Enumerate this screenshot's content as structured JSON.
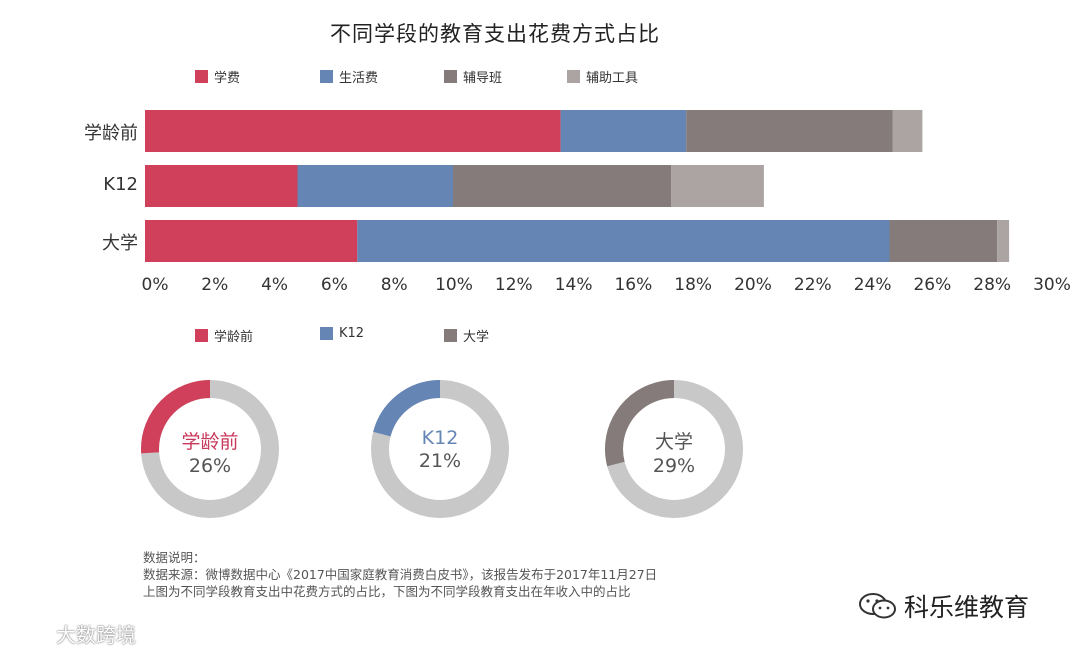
{
  "title": "不同学段的教育支出花费方式占比",
  "legend_top": [
    {
      "label": "学费",
      "color": "#d0405a"
    },
    {
      "label": "生活费",
      "color": "#6585b5"
    },
    {
      "label": "辅导班",
      "color": "#857b7a"
    },
    {
      "label": "辅助工具",
      "color": "#aba4a3"
    }
  ],
  "legend_bottom": [
    {
      "label": "学龄前",
      "color": "#d0405a"
    },
    {
      "label": "K12",
      "color": "#6585b5"
    },
    {
      "label": "大学",
      "color": "#857b7a"
    }
  ],
  "chart_data": [
    {
      "type": "bar",
      "orientation": "horizontal",
      "stacked": true,
      "title": "不同学段的教育支出花费方式占比",
      "categories": [
        "学龄前",
        "K12",
        "大学"
      ],
      "series": [
        {
          "name": "学费",
          "color": "#d0405a",
          "values": [
            13.9,
            5.1,
            7.1
          ]
        },
        {
          "name": "生活费",
          "color": "#6585b5",
          "values": [
            4.2,
            5.2,
            17.8
          ]
        },
        {
          "name": "辅导班",
          "color": "#857b7a",
          "values": [
            6.9,
            7.3,
            3.6
          ]
        },
        {
          "name": "辅助工具",
          "color": "#aba4a3",
          "values": [
            1.0,
            3.1,
            0.4
          ]
        }
      ],
      "xlim": [
        0,
        30
      ],
      "xticks": [
        "0%",
        "2%",
        "4%",
        "6%",
        "8%",
        "10%",
        "12%",
        "14%",
        "16%",
        "18%",
        "20%",
        "22%",
        "24%",
        "26%",
        "28%",
        "30%"
      ],
      "legend_position": "top",
      "grid": false
    },
    {
      "type": "pie",
      "donuts": [
        {
          "name": "学龄前",
          "value": 26,
          "label": "26%",
          "color": "#d0405a",
          "label_color": "#c8385a"
        },
        {
          "name": "K12",
          "value": 21,
          "label": "21%",
          "color": "#6585b5",
          "label_color": "#6585b5"
        },
        {
          "name": "大学",
          "value": 29,
          "label": "29%",
          "color": "#857b7a",
          "label_color": "#555555"
        }
      ],
      "remainder_color": "#c8c8c8"
    }
  ],
  "notes": [
    "数据说明：",
    "数据来源：微博数据中心《2017中国家庭教育消费白皮书》，该报告发布于2017年11月27日",
    "上图为不同学段教育支出中花费方式的占比，下图为不同学段教育支出在年收入中的占比"
  ],
  "watermark_right": "科乐维教育",
  "watermark_left": "大数跨境"
}
